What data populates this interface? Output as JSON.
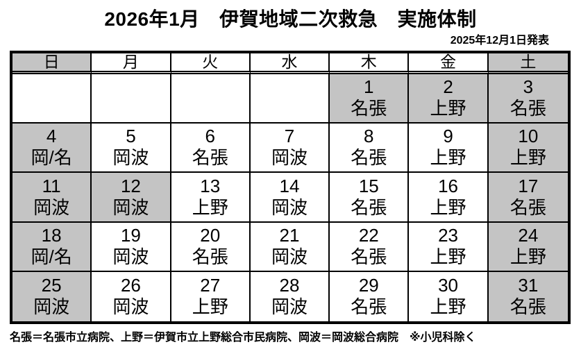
{
  "title": "2026年1月　伊賀地域二次救急　実施体制",
  "published": "2025年12月1日発表",
  "legend": "名張＝名張市立病院、上野＝伊賀市立上野総合市民病院、岡波＝岡波総合病院　※小児科除く",
  "colors": {
    "shaded_cell": "#c4c4c4",
    "border": "#000000",
    "background": "#ffffff",
    "text": "#000000"
  },
  "calendar": {
    "day_headers": [
      {
        "key": "sun",
        "label": "日",
        "shaded": true
      },
      {
        "key": "mon",
        "label": "月",
        "shaded": false
      },
      {
        "key": "tue",
        "label": "火",
        "shaded": false
      },
      {
        "key": "wed",
        "label": "水",
        "shaded": false
      },
      {
        "key": "thu",
        "label": "木",
        "shaded": false
      },
      {
        "key": "fri",
        "label": "金",
        "shaded": false
      },
      {
        "key": "sat",
        "label": "土",
        "shaded": true
      }
    ],
    "weeks": [
      [
        {
          "day": "",
          "hospital": "",
          "shaded": false
        },
        {
          "day": "",
          "hospital": "",
          "shaded": false
        },
        {
          "day": "",
          "hospital": "",
          "shaded": false
        },
        {
          "day": "",
          "hospital": "",
          "shaded": false
        },
        {
          "day": "1",
          "hospital": "名張",
          "shaded": true
        },
        {
          "day": "2",
          "hospital": "上野",
          "shaded": true
        },
        {
          "day": "3",
          "hospital": "名張",
          "shaded": true
        }
      ],
      [
        {
          "day": "4",
          "hospital": "岡/名",
          "shaded": true
        },
        {
          "day": "5",
          "hospital": "岡波",
          "shaded": false
        },
        {
          "day": "6",
          "hospital": "名張",
          "shaded": false
        },
        {
          "day": "7",
          "hospital": "岡波",
          "shaded": false
        },
        {
          "day": "8",
          "hospital": "名張",
          "shaded": false
        },
        {
          "day": "9",
          "hospital": "上野",
          "shaded": false
        },
        {
          "day": "10",
          "hospital": "上野",
          "shaded": true
        }
      ],
      [
        {
          "day": "11",
          "hospital": "岡波",
          "shaded": true
        },
        {
          "day": "12",
          "hospital": "岡波",
          "shaded": true
        },
        {
          "day": "13",
          "hospital": "上野",
          "shaded": false
        },
        {
          "day": "14",
          "hospital": "岡波",
          "shaded": false
        },
        {
          "day": "15",
          "hospital": "名張",
          "shaded": false
        },
        {
          "day": "16",
          "hospital": "上野",
          "shaded": false
        },
        {
          "day": "17",
          "hospital": "名張",
          "shaded": true
        }
      ],
      [
        {
          "day": "18",
          "hospital": "岡/名",
          "shaded": true
        },
        {
          "day": "19",
          "hospital": "岡波",
          "shaded": false
        },
        {
          "day": "20",
          "hospital": "名張",
          "shaded": false
        },
        {
          "day": "21",
          "hospital": "岡波",
          "shaded": false
        },
        {
          "day": "22",
          "hospital": "名張",
          "shaded": false
        },
        {
          "day": "23",
          "hospital": "上野",
          "shaded": false
        },
        {
          "day": "24",
          "hospital": "上野",
          "shaded": true
        }
      ],
      [
        {
          "day": "25",
          "hospital": "岡波",
          "shaded": true
        },
        {
          "day": "26",
          "hospital": "岡波",
          "shaded": false
        },
        {
          "day": "27",
          "hospital": "上野",
          "shaded": false
        },
        {
          "day": "28",
          "hospital": "岡波",
          "shaded": false
        },
        {
          "day": "29",
          "hospital": "名張",
          "shaded": false
        },
        {
          "day": "30",
          "hospital": "上野",
          "shaded": false
        },
        {
          "day": "31",
          "hospital": "名張",
          "shaded": true
        }
      ]
    ]
  }
}
